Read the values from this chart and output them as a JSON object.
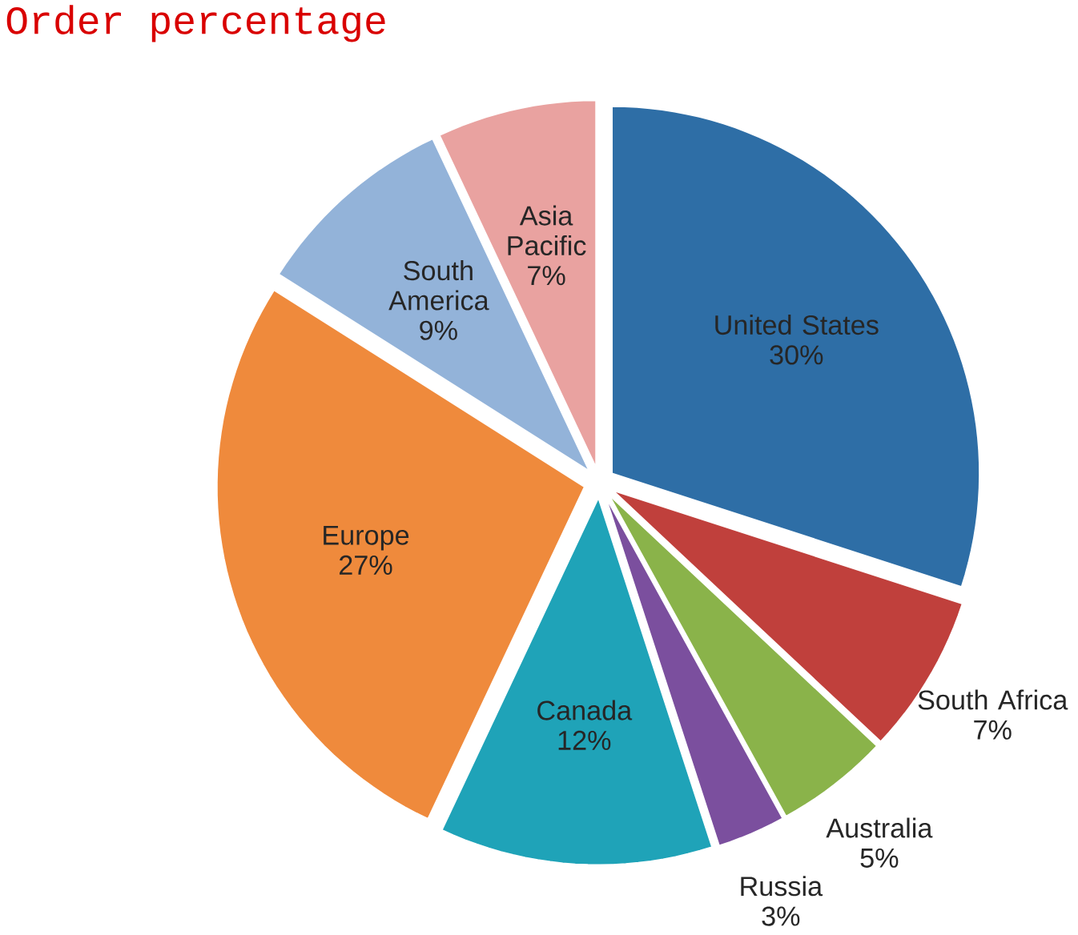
{
  "chart_data": {
    "type": "pie",
    "title": "Order percentage",
    "categories": [
      "United States",
      "South Africa",
      "Australia",
      "Russia",
      "Canada",
      "Europe",
      "South America",
      "Asia Pacific"
    ],
    "values": [
      30,
      7,
      5,
      3,
      12,
      27,
      9,
      7
    ],
    "colors": [
      "#2e6ea6",
      "#c0403c",
      "#8ab34a",
      "#7b4f9e",
      "#1fa3b8",
      "#ef8a3c",
      "#93b3d9",
      "#e9a2a0"
    ],
    "value_labels": [
      "30%",
      "7%",
      "5%",
      "3%",
      "12%",
      "27%",
      "9%",
      "7%"
    ]
  }
}
